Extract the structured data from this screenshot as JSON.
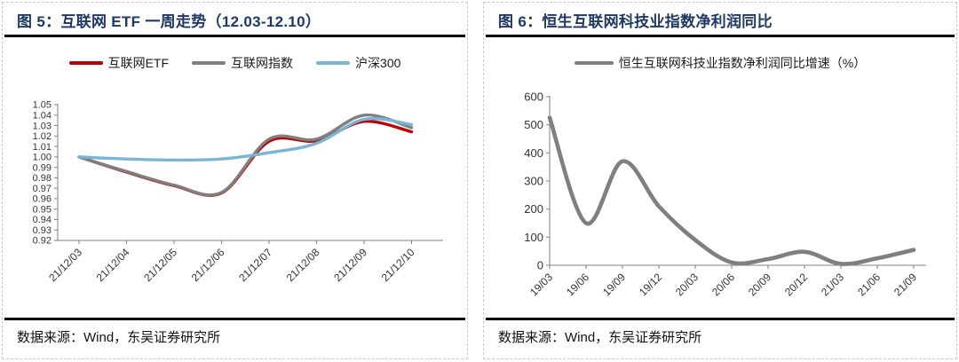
{
  "panels": [
    {
      "title": "图 5：互联网 ETF 一周走势（12.03-12.10）",
      "source": "数据来源：Wind，东吴证券研究所"
    },
    {
      "title": "图 6：恒生互联网科技业指数净利润同比",
      "source": "数据来源：Wind，东吴证券研究所"
    }
  ],
  "colors": {
    "title_navy": "#1F3864",
    "axis_gray": "#808080",
    "etf_red": "#C00000",
    "index_gray": "#7F7F7F",
    "csi_blue": "#79B5D6"
  },
  "chart_data": [
    {
      "type": "line",
      "smooth": true,
      "title": "互联网 ETF 一周走势（12.03-12.10）",
      "categories": [
        "21/12/03",
        "21/12/04",
        "21/12/05",
        "21/12/06",
        "21/12/07",
        "21/12/08",
        "21/12/09",
        "21/12/10"
      ],
      "series": [
        {
          "name": "互联网ETF",
          "color": "#C00000",
          "values": [
            1.0,
            0.9855,
            0.9725,
            0.9655,
            1.015,
            1.0155,
            1.034,
            1.024
          ]
        },
        {
          "name": "互联网指数",
          "color": "#7F7F7F",
          "values": [
            1.0,
            0.986,
            0.973,
            0.966,
            1.017,
            1.017,
            1.04,
            1.028
          ]
        },
        {
          "name": "沪深300",
          "color": "#79B5D6",
          "values": [
            1.0,
            0.998,
            0.997,
            0.998,
            1.004,
            1.013,
            1.036,
            1.031
          ]
        }
      ],
      "ylim": [
        0.92,
        1.05
      ],
      "ytick_step": 0.01,
      "y_decimals": 2,
      "xlabel": "",
      "ylabel": "",
      "grid": false,
      "legend_position": "top",
      "line_width": 3.4
    },
    {
      "type": "line",
      "smooth": true,
      "title": "恒生互联网科技业指数净利润同比",
      "categories": [
        "19/03",
        "19/06",
        "19/09",
        "19/12",
        "20/03",
        "20/06",
        "20/09",
        "20/12",
        "21/03",
        "21/06",
        "21/09"
      ],
      "series": [
        {
          "name": "恒生互联网科技业指数净利润同比增速（%）",
          "color": "#7F7F7F",
          "values": [
            525,
            150,
            370,
            210,
            90,
            10,
            22,
            48,
            5,
            25,
            55
          ]
        }
      ],
      "ylim": [
        0,
        600
      ],
      "ytick_step": 100,
      "y_decimals": 0,
      "xlabel": "",
      "ylabel": "",
      "grid": false,
      "legend_position": "top",
      "line_width": 4.6
    }
  ]
}
